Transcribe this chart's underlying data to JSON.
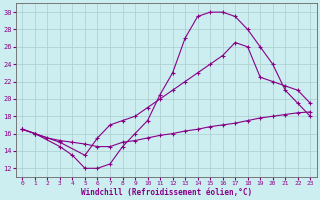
{
  "xlabel": "Windchill (Refroidissement éolien,°C)",
  "ylabel": "",
  "xlim": [
    -0.5,
    23.5
  ],
  "ylim": [
    11,
    31
  ],
  "yticks": [
    12,
    14,
    16,
    18,
    20,
    22,
    24,
    26,
    28,
    30
  ],
  "xticks": [
    0,
    1,
    2,
    3,
    4,
    5,
    6,
    7,
    8,
    9,
    10,
    11,
    12,
    13,
    14,
    15,
    16,
    17,
    18,
    19,
    20,
    21,
    22,
    23
  ],
  "bg_color": "#cceef0",
  "line_color": "#880088",
  "grid_color": "#aacccc",
  "lines": [
    {
      "x": [
        0,
        1,
        3,
        4,
        5,
        6,
        7,
        8,
        9,
        10,
        11,
        12,
        13,
        14,
        15,
        16,
        17,
        18,
        19,
        20,
        21,
        22,
        23
      ],
      "y": [
        16.5,
        16.0,
        14.5,
        13.5,
        12.0,
        12.0,
        12.5,
        14.5,
        16.0,
        17.5,
        20.5,
        23.0,
        27.0,
        29.5,
        30.0,
        30.0,
        29.5,
        28.0,
        26.0,
        24.0,
        21.0,
        19.5,
        18.0
      ]
    },
    {
      "x": [
        0,
        1,
        3,
        5,
        6,
        7,
        8,
        9,
        10,
        11,
        12,
        13,
        14,
        15,
        16,
        17,
        18,
        19,
        20,
        21,
        22,
        23
      ],
      "y": [
        16.5,
        16.0,
        15.0,
        13.5,
        15.5,
        17.0,
        17.5,
        18.0,
        19.0,
        20.0,
        21.0,
        22.0,
        23.0,
        24.0,
        25.0,
        26.5,
        26.0,
        22.5,
        22.0,
        21.5,
        21.0,
        19.5
      ]
    },
    {
      "x": [
        0,
        1,
        2,
        3,
        4,
        5,
        6,
        7,
        8,
        9,
        10,
        11,
        12,
        13,
        14,
        15,
        16,
        17,
        18,
        19,
        20,
        21,
        22,
        23
      ],
      "y": [
        16.5,
        16.0,
        15.5,
        15.2,
        15.0,
        14.8,
        14.5,
        14.5,
        15.0,
        15.2,
        15.5,
        15.8,
        16.0,
        16.3,
        16.5,
        16.8,
        17.0,
        17.2,
        17.5,
        17.8,
        18.0,
        18.2,
        18.4,
        18.5
      ]
    }
  ]
}
